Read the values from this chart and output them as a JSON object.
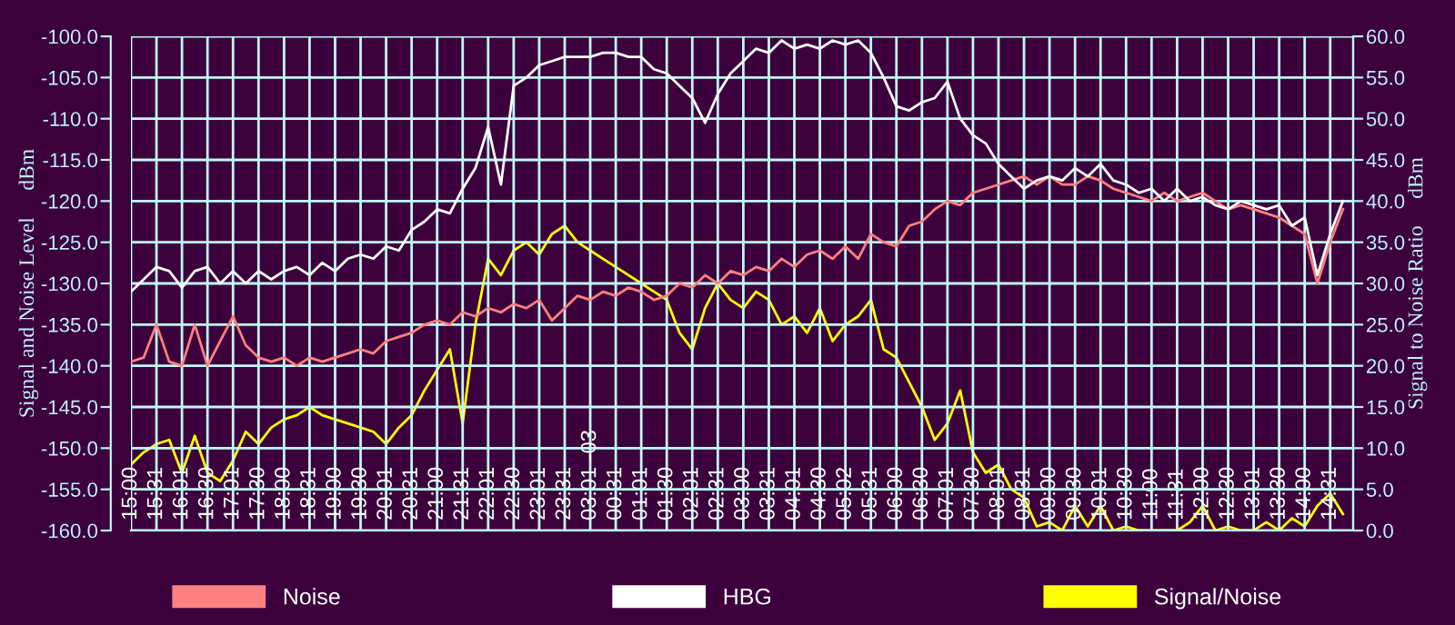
{
  "chart_data": {
    "type": "line",
    "ylabel": "Signal and Noise Level     dBm",
    "y2label": "Signal to Noise Ratio     dBm",
    "categories": [
      "15:00",
      null,
      "15:31",
      null,
      "16:01",
      null,
      "16:30",
      null,
      "17:01",
      null,
      "17:30",
      null,
      "18:00",
      null,
      "18:31",
      null,
      "19:00",
      null,
      "19:30",
      null,
      "20:01",
      null,
      "20:31",
      null,
      "21:00",
      null,
      "21:31",
      null,
      "22:01",
      null,
      "22:30",
      null,
      "23:01",
      null,
      "23:31",
      null,
      "03:01 -03",
      null,
      "00:31",
      null,
      "01:01",
      null,
      "01:30",
      null,
      "02:01",
      null,
      "02:31",
      null,
      "03:00",
      null,
      "03:31",
      null,
      "04:01",
      null,
      "04:30",
      null,
      "05:02",
      null,
      "05:31",
      null,
      "06:00",
      null,
      "06:30",
      null,
      "07:01",
      null,
      "07:30",
      null,
      "08:01",
      null,
      "08:31",
      null,
      "09:00",
      null,
      "09:30",
      null,
      "10:01",
      null,
      "10:30",
      null,
      "11:00",
      null,
      "11:31",
      null,
      "12:00",
      null,
      "12:30",
      null,
      "13:01",
      null,
      "13:30",
      null,
      "14:00",
      null,
      "14:31",
      null
    ],
    "series": [
      {
        "name": "Noise",
        "color": "#ff8080",
        "values": [
          -139.5,
          -139,
          -135,
          -139.5,
          -140,
          -135,
          -140,
          -137,
          -134,
          -137.5,
          -139,
          -139.5,
          -139,
          -140,
          -139,
          -139.5,
          -139,
          -138.5,
          -138,
          -138.5,
          -137,
          -136.5,
          -136,
          -135,
          -134.5,
          -135,
          -133.5,
          -134,
          -133,
          -133.5,
          -132.5,
          -133,
          -132,
          -134.5,
          -133,
          -131.5,
          -132,
          -131,
          -131.5,
          -130.5,
          -131,
          -132,
          -131.5,
          -130,
          -130.5,
          -129,
          -130,
          -128.5,
          -129,
          -128,
          -128.5,
          -127,
          -128,
          -126.5,
          -126,
          -127,
          -125.5,
          -127,
          -124,
          -125,
          -125.5,
          -123,
          -122.5,
          -121,
          -120,
          -120.5,
          -119,
          -118.5,
          -118,
          -117.5,
          -117,
          -118,
          -117,
          -118,
          -118,
          -117,
          -117.5,
          -118.5,
          -119,
          -119.5,
          -120,
          -119,
          -120,
          -119.5,
          -119,
          -120,
          -121,
          -120.5,
          -121,
          -121.5,
          -122,
          -123,
          -124,
          -130,
          -125,
          -121
        ]
      },
      {
        "name": "HBG",
        "color": "#ffffff",
        "values": [
          -131,
          -129.5,
          -128,
          -128.5,
          -130.5,
          -128.5,
          -128,
          -130,
          -128.5,
          -130,
          -128.5,
          -129.5,
          -128.5,
          -128,
          -129,
          -127.5,
          -128.5,
          -127,
          -126.5,
          -127,
          -125.5,
          -126,
          -123.5,
          -122.5,
          -121,
          -121.5,
          -118.5,
          -116,
          -111,
          -118,
          -106,
          -105,
          -103.5,
          -103,
          -102.5,
          -102.5,
          -102.5,
          -102,
          -102,
          -102.5,
          -102.5,
          -104,
          -104.5,
          -106,
          -107.5,
          -110.5,
          -107,
          -104.5,
          -103,
          -101.5,
          -102,
          -100.5,
          -101.5,
          -101,
          -101.5,
          -100.5,
          -101,
          -100.5,
          -102,
          -105,
          -108.5,
          -109,
          -108,
          -107.5,
          -105.5,
          -110,
          -112,
          -113,
          -115.5,
          -117,
          -118.5,
          -117.5,
          -117,
          -117.5,
          -116,
          -117,
          -115.5,
          -117.5,
          -118,
          -119,
          -118.5,
          -120,
          -118.5,
          -120,
          -119.5,
          -120.5,
          -121,
          -120,
          -120.5,
          -121,
          -120.5,
          -123,
          -122,
          -129,
          -124,
          -120
        ]
      },
      {
        "name": "Signal/Noise",
        "color": "#ffff00",
        "axis": "y2",
        "values": [
          8,
          9.5,
          10.5,
          11,
          7,
          11.5,
          7,
          6,
          8.5,
          12,
          10.5,
          12.5,
          13.5,
          14,
          15,
          14,
          13.5,
          13,
          12.5,
          12,
          10.5,
          12.5,
          14,
          17,
          19.5,
          22,
          13,
          25,
          33,
          31,
          34,
          35,
          33.5,
          36,
          37,
          35,
          34,
          33,
          32,
          31,
          30,
          29,
          28,
          24,
          22,
          27,
          30,
          28,
          27,
          29,
          28,
          25,
          26,
          24,
          27,
          23,
          25,
          26,
          28,
          22,
          21,
          18,
          15,
          11,
          13,
          17,
          9.5,
          7,
          8,
          5,
          4,
          0.5,
          1,
          0,
          3,
          0.5,
          3,
          0,
          0.5,
          0,
          0,
          0,
          0,
          1,
          3,
          0,
          0.5,
          0,
          0,
          1,
          0,
          1.5,
          0.5,
          3,
          4.5,
          2
        ]
      }
    ],
    "ylim": [
      -160,
      -100
    ],
    "yticks": [
      {
        "value": -160,
        "label": "-160.0"
      },
      {
        "value": -155,
        "label": "-155.0"
      },
      {
        "value": -150,
        "label": "-150.0"
      },
      {
        "value": -145,
        "label": "-145.0"
      },
      {
        "value": -140,
        "label": "-140.0"
      },
      {
        "value": -135,
        "label": "-135.0"
      },
      {
        "value": -130,
        "label": "-130.0"
      },
      {
        "value": -125,
        "label": "-125.0"
      },
      {
        "value": -120,
        "label": "-120.0"
      },
      {
        "value": -115,
        "label": "-115.0"
      },
      {
        "value": -110,
        "label": "-110.0"
      },
      {
        "value": -105,
        "label": "-105.0"
      },
      {
        "value": -100,
        "label": "-100.0"
      }
    ],
    "y2lim": [
      0,
      60
    ],
    "y2ticks": [
      {
        "value": 0,
        "label": "0.0"
      },
      {
        "value": 5,
        "label": "5.0"
      },
      {
        "value": 10,
        "label": "10.0"
      },
      {
        "value": 15,
        "label": "15.0"
      },
      {
        "value": 20,
        "label": "20.0"
      },
      {
        "value": 25,
        "label": "25.0"
      },
      {
        "value": 30,
        "label": "30.0"
      },
      {
        "value": 35,
        "label": "35.0"
      },
      {
        "value": 40,
        "label": "40.0"
      },
      {
        "value": 45,
        "label": "45.0"
      },
      {
        "value": 50,
        "label": "50.0"
      },
      {
        "value": 55,
        "label": "55.0"
      },
      {
        "value": 60,
        "label": "60.0"
      }
    ],
    "grid": true,
    "legend": "bottom",
    "line_style": "solid"
  }
}
